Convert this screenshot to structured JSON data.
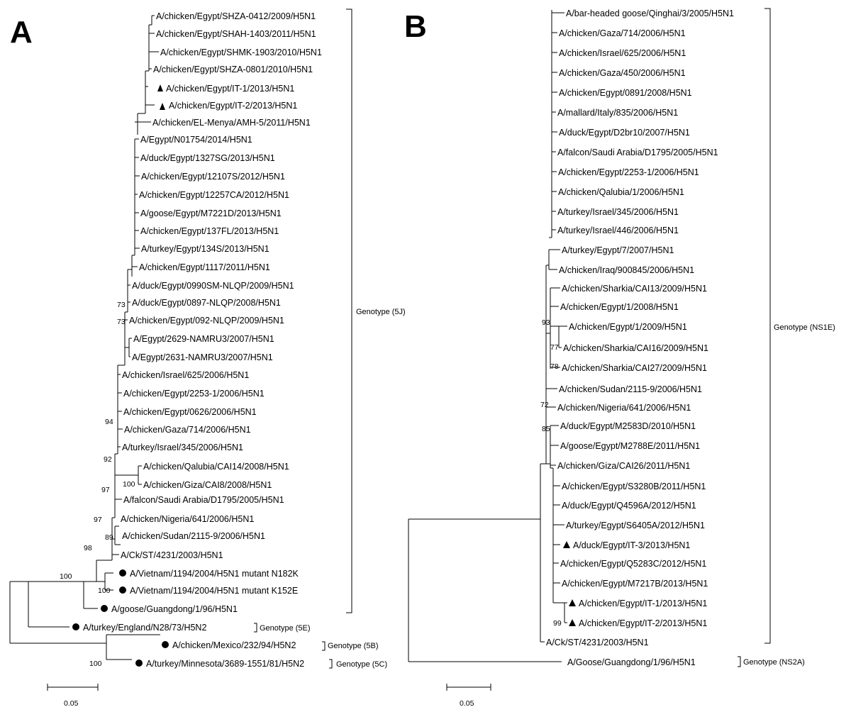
{
  "panels": [
    {
      "id": "A",
      "label": "A",
      "taxa": [
        "A/chicken/Egypt/SHZA-0412/2009/H5N1",
        "A/chicken/Egypt/SHAH-1403/2011/H5N1",
        "A/chicken/Egypt/SHMK-1903/2010/H5N1",
        "A/chicken/Egypt/SHZA-0801/2010/H5N1",
        "A/chicken/Egypt/IT-1/2013/H5N1",
        "A/chicken/Egypt/IT-2/2013/H5N1",
        "A/chicken/EL-Menya/AMH-5/2011/H5N1",
        "A/Egypt/N01754/2014/H5N1",
        "A/duck/Egypt/1327SG/2013/H5N1",
        "A/chicken/Egypt/12107S/2012/H5N1",
        "A/chicken/Egypt/12257CA/2012/H5N1",
        "A/goose/Egypt/M7221D/2013/H5N1",
        "A/chicken/Egypt/137FL/2013/H5N1",
        "A/turkey/Egypt/134S/2013/H5N1",
        "A/chicken/Egypt/1117/2011/H5N1",
        "A/duck/Egypt/0990SM-NLQP/2009/H5N1",
        "A/duck/Egypt/0897-NLQP/2008/H5N1",
        "A/chicken/Egypt/092-NLQP/2009/H5N1",
        "A/Egypt/2629-NAMRU3/2007/H5N1",
        "A/Egypt/2631-NAMRU3/2007/H5N1",
        "A/chicken/Israel/625/2006/H5N1",
        "A/chicken/Egypt/2253-1/2006/H5N1",
        "A/chicken/Egypt/0626/2006/H5N1",
        "A/chicken/Gaza/714/2006/H5N1",
        "A/turkey/Israel/345/2006/H5N1",
        "A/chicken/Qalubia/CAI14/2008/H5N1",
        "A/chicken/Giza/CAI8/2008/H5N1",
        "A/falcon/Saudi Arabia/D1795/2005/H5N1",
        "A/chicken/Nigeria/641/2006/H5N1",
        "A/chicken/Sudan/2115-9/2006/H5N1",
        "A/Ck/ST/4231/2003/H5N1",
        "A/Vietnam/1194/2004/H5N1 mutant N182K",
        "A/Vietnam/1194/2004/H5N1 mutant K152E",
        "A/goose/Guangdong/1/96/H5N1",
        "A/turkey/England/N28/73/H5N2",
        "A/chicken/Mexico/232/94/H5N2",
        "A/turkey/Minnesota/3689-1551/81/H5N2"
      ],
      "bootstrap": [
        "73",
        "73",
        "94",
        "92",
        "100",
        "97",
        "97",
        "89",
        "98",
        "100",
        "100",
        "100"
      ],
      "genotypes": [
        "Genotype (5J)",
        "Genotype (5E)",
        "Genotype (5B)",
        "Genotype (5C)"
      ],
      "scale_label": "0.05"
    },
    {
      "id": "B",
      "label": "B",
      "taxa": [
        "A/bar-headed goose/Qinghai/3/2005/H5N1",
        "A/chicken/Gaza/714/2006/H5N1",
        "A/chicken/Israel/625/2006/H5N1",
        "A/chicken/Gaza/450/2006/H5N1",
        "A/chicken/Egypt/0891/2008/H5N1",
        "A/mallard/Italy/835/2006/H5N1",
        "A/duck/Egypt/D2br10/2007/H5N1",
        "A/falcon/Saudi Arabia/D1795/2005/H5N1",
        "A/chicken/Egypt/2253-1/2006/H5N1",
        "A/chicken/Qalubia/1/2006/H5N1",
        "A/turkey/Israel/345/2006/H5N1",
        "A/turkey/Israel/446/2006/H5N1",
        "A/turkey/Egypt/7/2007/H5N1",
        "A/chicken/Iraq/900845/2006/H5N1",
        "A/chicken/Sharkia/CAI13/2009/H5N1",
        "A/chicken/Egypt/1/2008/H5N1",
        "A/chicken/Egypt/1/2009/H5N1",
        "A/chicken/Sharkia/CAI16/2009/H5N1",
        "A/chicken/Sharkia/CAI27/2009/H5N1",
        "A/chicken/Sudan/2115-9/2006/H5N1",
        "A/chicken/Nigeria/641/2006/H5N1",
        "A/duck/Egypt/M2583D/2010/H5N1",
        "A/goose/Egypt/M2788E/2011/H5N1",
        "A/chicken/Giza/CAI26/2011/H5N1",
        "A/chicken/Egypt/S3280B/2011/H5N1",
        "A/duck/Egypt/Q4596A/2012/H5N1",
        "A/turkey/Egypt/S6405A/2012/H5N1",
        "A/duck/Egypt/IT-3/2013/H5N1",
        "A/chicken/Egypt/Q5283C/2012/H5N1",
        "A/chicken/Egypt/M7217B/2013/H5N1",
        "A/chicken/Egypt/IT-1/2013/H5N1",
        "A/chicken/Egypt/IT-2/2013/H5N1",
        "A/Ck/ST/4231/2003/H5N1",
        "A/Goose/Guangdong/1/96/H5N1"
      ],
      "bootstrap": [
        "93",
        "77",
        "78",
        "72",
        "85",
        "99"
      ],
      "genotypes": [
        "Genotype (NS1E)",
        "Genotype (NS2A)"
      ],
      "scale_label": "0.05"
    }
  ]
}
